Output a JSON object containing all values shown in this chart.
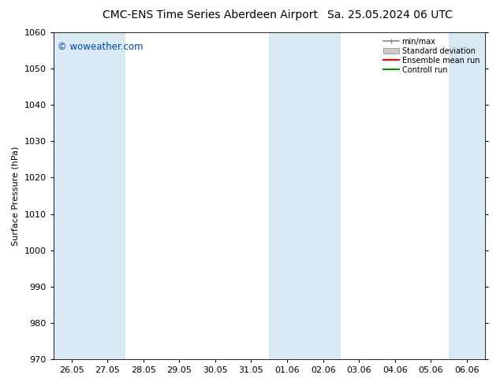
{
  "title_left": "CMC-ENS Time Series Aberdeen Airport",
  "title_right": "Sa. 25.05.2024 06 UTC",
  "ylabel": "Surface Pressure (hPa)",
  "ylim": [
    970,
    1060
  ],
  "yticks": [
    970,
    980,
    990,
    1000,
    1010,
    1020,
    1030,
    1040,
    1050,
    1060
  ],
  "xtick_labels": [
    "26.05",
    "27.05",
    "28.05",
    "29.05",
    "30.05",
    "31.05",
    "01.06",
    "02.06",
    "03.06",
    "04.06",
    "05.06",
    "06.06"
  ],
  "xtick_positions": [
    0,
    1,
    2,
    3,
    4,
    5,
    6,
    7,
    8,
    9,
    10,
    11
  ],
  "shaded_bands": [
    {
      "xmin": -0.5,
      "xmax": 0.5,
      "color": "#daeaf5"
    },
    {
      "xmin": 0.5,
      "xmax": 1.5,
      "color": "#daeaf5"
    },
    {
      "xmin": 5.5,
      "xmax": 6.5,
      "color": "#daeaf5"
    },
    {
      "xmin": 6.5,
      "xmax": 7.5,
      "color": "#daeaf5"
    },
    {
      "xmin": 10.5,
      "xmax": 11.5,
      "color": "#daeaf5"
    }
  ],
  "legend_labels": [
    "min/max",
    "Standard deviation",
    "Ensemble mean run",
    "Controll run"
  ],
  "legend_colors": [
    "#888888",
    "#cccccc",
    "#ff0000",
    "#009900"
  ],
  "watermark": "© woweather.com",
  "watermark_color": "#0044bb",
  "background_color": "#ffffff",
  "plot_bg_color": "#ffffff",
  "title_fontsize": 10,
  "axis_fontsize": 8,
  "tick_fontsize": 8
}
